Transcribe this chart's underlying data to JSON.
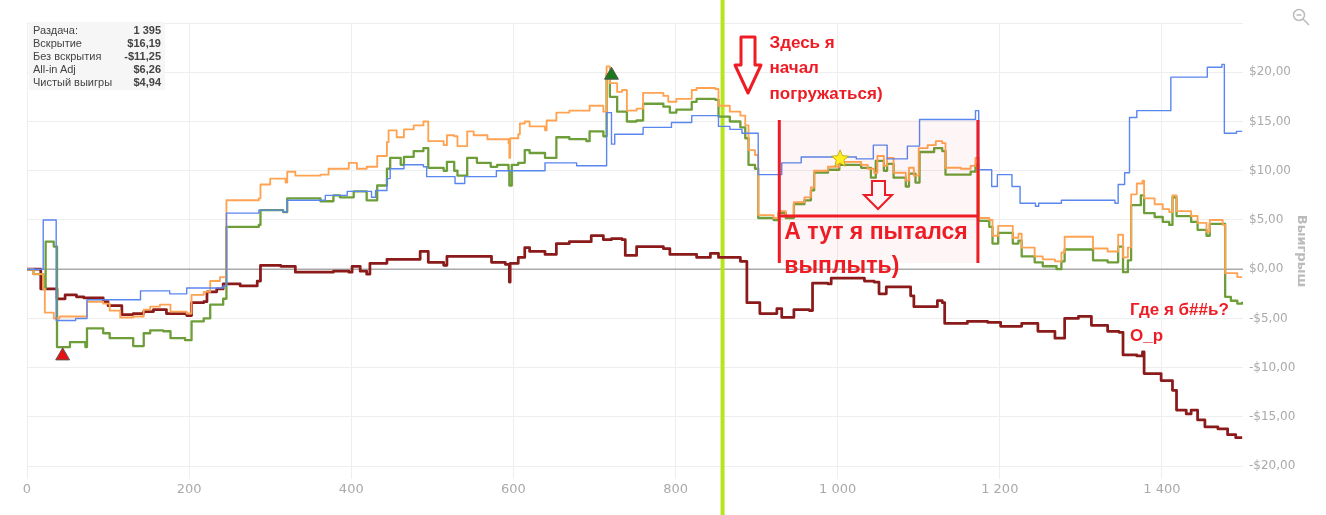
{
  "chart_data": [
    {
      "type": "step",
      "ylabel": "Выигрыш",
      "xlim": [
        0,
        1500
      ],
      "ylim": [
        -21.3,
        25
      ],
      "xticks": [
        0,
        200,
        400,
        600,
        800,
        {
          "value": 1000,
          "label": "1 000"
        },
        {
          "value": 1200,
          "label": "1 200"
        },
        {
          "value": 1400,
          "label": "1 400"
        }
      ],
      "yticks": [
        {
          "value": -20,
          "label": "-$20,00"
        },
        {
          "value": -15,
          "label": "-$15,00"
        },
        {
          "value": -10,
          "label": "-$10,00"
        },
        {
          "value": -5,
          "label": "-$5,00"
        },
        {
          "value": 0,
          "label": "$0,00"
        },
        {
          "value": 5,
          "label": "$5,00"
        },
        {
          "value": 10,
          "label": "$10,00"
        },
        {
          "value": 15,
          "label": "$15,00"
        },
        {
          "value": 20,
          "label": "$20,00"
        },
        {
          "value": 25,
          "label": null
        }
      ],
      "grid": true,
      "legend": false,
      "ref_lines": [
        {
          "axis": "y",
          "value": 0,
          "color": "#aaaaaa"
        },
        {
          "axis": "x",
          "value": 858,
          "color": "#b5e61d"
        }
      ],
      "bands": [
        {
          "axis": "x",
          "from": 928,
          "to": 1173,
          "label": "А тут я пытался выплыть)",
          "color": "#ee1c24"
        }
      ],
      "annotations": [
        {
          "text": "Здесь я начал погружаться)",
          "x": 890,
          "y": 14
        },
        "Где я б##ь? O_p"
      ],
      "series": [
        {
          "color": "#5a86f0",
          "x": [
            0,
            20,
            36,
            60,
            74,
            140,
            176,
            197,
            242,
            246,
            286,
            316,
            321,
            368,
            395,
            425,
            430,
            444,
            448,
            465,
            489,
            493,
            528,
            540,
            579,
            639,
            678,
            715,
            721,
            725,
            760,
            795,
            820,
            853,
            867,
            882,
            902,
            931,
            955,
            1023,
            1044,
            1061,
            1086,
            1101,
            1170,
            1174,
            1190,
            1197,
            1215,
            1225,
            1244,
            1248,
            1276,
            1342,
            1346,
            1354,
            1360,
            1369,
            1411,
            1456,
            1474,
            1477,
            1492,
            1499
          ],
          "values": [
            0,
            5,
            -5.2,
            -5,
            -3.1,
            -2.2,
            -2.5,
            -1.9,
            -1.7,
            5.7,
            6.0,
            5.8,
            7.0,
            7.5,
            7.9,
            7.3,
            8.0,
            9.2,
            10.2,
            10.6,
            10.4,
            9.4,
            8.7,
            9.4,
            10.0,
            10.8,
            10.5,
            15.9,
            12.7,
            13.7,
            14.4,
            14.9,
            15.6,
            14.5,
            14.2,
            13.8,
            9.6,
            10.8,
            11.4,
            11.2,
            12.6,
            11.2,
            12.5,
            15.2,
            16.1,
            10.1,
            8.4,
            9.6,
            8.4,
            6.7,
            6.4,
            6.7,
            7.0,
            6.7,
            8.6,
            9.8,
            15.4,
            16.1,
            19.5,
            20.5,
            20.8,
            13.8,
            14.0,
            14.0
          ]
        },
        {
          "color": "#ffa352",
          "x": [
            0,
            8,
            20,
            22,
            33,
            40,
            74,
            94,
            102,
            115,
            131,
            144,
            152,
            164,
            177,
            197,
            203,
            218,
            226,
            238,
            246,
            286,
            288,
            300,
            319,
            321,
            331,
            362,
            372,
            397,
            407,
            419,
            432,
            444,
            446,
            456,
            465,
            477,
            489,
            495,
            514,
            518,
            527,
            531,
            543,
            551,
            568,
            594,
            595,
            596,
            606,
            608,
            614,
            620,
            639,
            641,
            653,
            669,
            694,
            711,
            715,
            719,
            728,
            734,
            740,
            752,
            760,
            785,
            791,
            801,
            820,
            826,
            849,
            853,
            867,
            880,
            886,
            890,
            898,
            902,
            921,
            927,
            936,
            946,
            959,
            967,
            971,
            988,
            1002,
            1029,
            1037,
            1045,
            1049,
            1057,
            1061,
            1069,
            1084,
            1088,
            1094,
            1100,
            1111,
            1121,
            1129,
            1133,
            1152,
            1164,
            1170,
            1174,
            1187,
            1191,
            1198,
            1216,
            1223,
            1227,
            1243,
            1253,
            1268,
            1276,
            1280,
            1315,
            1333,
            1346,
            1352,
            1358,
            1362,
            1369,
            1376,
            1378,
            1391,
            1401,
            1409,
            1413,
            1418,
            1436,
            1444,
            1455,
            1459,
            1475,
            1478,
            1493,
            1499
          ],
          "values": [
            0,
            -0.5,
            -2.0,
            -4.4,
            -5.0,
            -4.8,
            -3.3,
            -3.5,
            -4.2,
            -4.9,
            -4.8,
            -4.1,
            -3.8,
            -3.6,
            -4.3,
            -4.5,
            -2.6,
            -2.3,
            -1.2,
            -0.8,
            7.0,
            7.2,
            8.6,
            9.2,
            8.8,
            9.9,
            9.5,
            9.6,
            10.2,
            10.8,
            10.2,
            10.4,
            11.5,
            12.9,
            14.1,
            13.4,
            14.2,
            14.6,
            15.0,
            13.0,
            12.6,
            13.6,
            13.5,
            12.5,
            14.0,
            13.6,
            13.2,
            12.8,
            11.3,
            13.3,
            13.7,
            14.8,
            15.0,
            14.5,
            14.1,
            15.1,
            15.9,
            16.1,
            16.6,
            16.0,
            20.6,
            18.9,
            18.0,
            18.2,
            16.1,
            16.3,
            17.9,
            17.6,
            17.0,
            17.3,
            18.2,
            18.4,
            18.3,
            16.6,
            16.0,
            15.6,
            14.6,
            12.1,
            11.6,
            5.5,
            5.2,
            5.9,
            5.4,
            6.8,
            7.3,
            8.3,
            10.0,
            10.4,
            10.9,
            10.6,
            10.2,
            9.8,
            11.5,
            10.5,
            11.3,
            9.8,
            9.0,
            10.3,
            9.5,
            12.3,
            12.6,
            13.0,
            12.8,
            10.3,
            10.2,
            10.5,
            11.3,
            5.2,
            5.0,
            3.4,
            4.4,
            3.2,
            3.6,
            2.2,
            1.3,
            1.0,
            0.8,
            1.7,
            3.3,
            2.1,
            1.8,
            3.5,
            1.2,
            2.2,
            7.6,
            8.7,
            9.0,
            7.2,
            6.6,
            6.1,
            5.8,
            7.5,
            5.9,
            5.4,
            4.7,
            3.8,
            5.0,
            4.5,
            -0.4,
            -0.8,
            -0.8
          ]
        },
        {
          "color": "#6e9e3a",
          "x": [
            0,
            8,
            20,
            23,
            33,
            37,
            53,
            72,
            74,
            94,
            102,
            131,
            144,
            152,
            168,
            177,
            195,
            203,
            218,
            226,
            242,
            246,
            286,
            288,
            316,
            321,
            362,
            378,
            386,
            403,
            419,
            432,
            444,
            448,
            461,
            465,
            477,
            489,
            495,
            514,
            518,
            527,
            531,
            543,
            555,
            572,
            580,
            594,
            595,
            598,
            606,
            614,
            620,
            639,
            653,
            669,
            690,
            694,
            711,
            715,
            719,
            728,
            740,
            752,
            760,
            785,
            793,
            801,
            820,
            826,
            849,
            853,
            867,
            880,
            886,
            890,
            898,
            902,
            921,
            927,
            936,
            946,
            959,
            967,
            971,
            988,
            1002,
            1029,
            1041,
            1047,
            1057,
            1061,
            1069,
            1084,
            1088,
            1096,
            1101,
            1119,
            1129,
            1133,
            1164,
            1170,
            1174,
            1187,
            1191,
            1198,
            1216,
            1223,
            1227,
            1243,
            1253,
            1270,
            1276,
            1280,
            1315,
            1333,
            1346,
            1352,
            1358,
            1362,
            1374,
            1378,
            1391,
            1401,
            1409,
            1413,
            1418,
            1436,
            1444,
            1455,
            1459,
            1475,
            1478,
            1485,
            1493,
            1499
          ],
          "values": [
            0,
            -0.5,
            -2.0,
            2.8,
            2.3,
            -7.9,
            -7.4,
            -7.9,
            -6.0,
            -6.5,
            -7.0,
            -7.8,
            -6.5,
            -6.2,
            -6.3,
            -7.0,
            -7.2,
            -5.3,
            -5.0,
            -3.6,
            -3.0,
            4.3,
            4.5,
            6.0,
            5.8,
            7.2,
            6.9,
            7.5,
            7.3,
            7.9,
            7.0,
            8.5,
            10.2,
            11.3,
            10.6,
            11.4,
            12.0,
            12.3,
            10.3,
            10.0,
            10.9,
            10.0,
            9.5,
            11.3,
            10.8,
            10.4,
            10.6,
            10.0,
            8.5,
            10.6,
            10.8,
            12.1,
            11.8,
            11.3,
            13.4,
            13.2,
            13.0,
            14.0,
            13.5,
            19.8,
            17.5,
            16.0,
            15.0,
            15.1,
            16.8,
            16.5,
            15.9,
            16.2,
            17.0,
            17.3,
            17.2,
            15.5,
            15.0,
            14.4,
            13.3,
            10.6,
            10.2,
            5.2,
            5.0,
            5.7,
            5.2,
            6.6,
            7.0,
            8.0,
            9.8,
            10.1,
            10.6,
            10.3,
            9.3,
            11.0,
            10.0,
            10.7,
            9.3,
            8.4,
            9.7,
            8.8,
            11.9,
            12.3,
            12.0,
            9.6,
            9.9,
            10.6,
            4.9,
            4.3,
            2.6,
            3.7,
            2.6,
            2.9,
            1.3,
            0.7,
            0.3,
            0.0,
            0.8,
            2.0,
            0.9,
            0.7,
            2.3,
            -0.3,
            0.9,
            6.5,
            7.5,
            5.7,
            5.3,
            4.8,
            4.5,
            7.3,
            5.4,
            4.8,
            4.0,
            3.4,
            4.6,
            4.6,
            -2.8,
            -3.2,
            -3.5,
            -3.3
          ]
        },
        {
          "color": "#8b1a1a",
          "x": [
            0,
            17,
            37,
            47,
            61,
            70,
            94,
            100,
            117,
            131,
            144,
            156,
            172,
            197,
            203,
            218,
            222,
            234,
            242,
            263,
            284,
            288,
            313,
            331,
            378,
            397,
            401,
            411,
            419,
            423,
            444,
            473,
            485,
            495,
            514,
            518,
            563,
            573,
            590,
            595,
            596,
            606,
            614,
            620,
            639,
            653,
            669,
            696,
            711,
            721,
            734,
            738,
            752,
            785,
            793,
            826,
            843,
            853,
            880,
            888,
            904,
            925,
            931,
            946,
            965,
            969,
            988,
            992,
            1033,
            1045,
            1051,
            1060,
            1090,
            1094,
            1123,
            1129,
            1132,
            1160,
            1185,
            1201,
            1227,
            1247,
            1268,
            1280,
            1297,
            1313,
            1333,
            1347,
            1352,
            1369,
            1376,
            1378,
            1399,
            1413,
            1418,
            1430,
            1436,
            1444,
            1453,
            1469,
            1481,
            1491,
            1499
          ],
          "values": [
            0,
            -2.0,
            -3.0,
            -2.6,
            -2.8,
            -2.9,
            -3.3,
            -3.7,
            -4.6,
            -4.5,
            -4.3,
            -4.1,
            -4.5,
            -4.7,
            -3.4,
            -3.3,
            -2.3,
            -2.0,
            -1.5,
            -1.7,
            -1.2,
            0.4,
            0.3,
            -0.3,
            -0.2,
            -0.3,
            0.3,
            -0.2,
            -0.5,
            0.6,
            1.0,
            1.0,
            1.8,
            0.7,
            0.4,
            1.3,
            1.3,
            0.7,
            0.5,
            -1.3,
            0.6,
            1.2,
            2.2,
            1.8,
            1.5,
            2.6,
            2.8,
            3.4,
            3.0,
            3.1,
            3.0,
            1.4,
            2.3,
            2.1,
            1.5,
            1.2,
            1.6,
            1.2,
            0.8,
            -3.4,
            -4.5,
            -4.0,
            -4.9,
            -4.1,
            -4.2,
            -1.4,
            -1.5,
            -0.9,
            -1.2,
            -1.3,
            -2.5,
            -1.8,
            -2.7,
            -3.8,
            -3.2,
            -3.4,
            -5.5,
            -5.3,
            -5.4,
            -5.8,
            -5.5,
            -6.3,
            -7.0,
            -5.0,
            -4.8,
            -5.7,
            -6.3,
            -6.4,
            -8.7,
            -8.8,
            -8.4,
            -10.6,
            -11.3,
            -12.3,
            -14.3,
            -14.7,
            -14.3,
            -15.3,
            -16.0,
            -16.2,
            -16.8,
            -17.1,
            -17.1
          ]
        },
        {
          "type": "scatter",
          "marker": "triangle",
          "color": "#1a7a1a",
          "x": [
            721
          ],
          "values": [
            19.7
          ]
        },
        {
          "type": "scatter",
          "marker": "triangle",
          "color": "#e81010",
          "x": [
            44
          ],
          "values": [
            -8.8
          ]
        },
        {
          "type": "scatter",
          "marker": "star",
          "color": "#ffee22",
          "x": [
            1003
          ],
          "values": [
            11.2
          ]
        }
      ]
    },
    {
      "type": "other",
      "annotations": [
        "Раздача:",
        "1 395",
        "Вскрытие",
        "$16,19",
        "Без вскрытия",
        "-$11,25",
        "All-in Adj",
        "$6,26",
        "Чистый выигры",
        "$4,94"
      ]
    }
  ]
}
